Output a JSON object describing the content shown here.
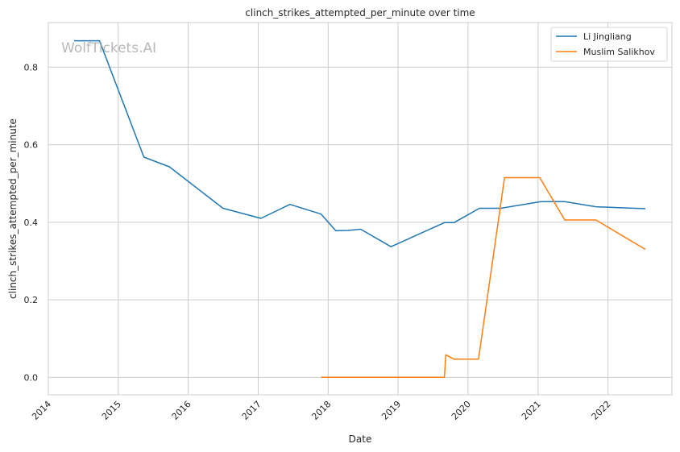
{
  "chart_data": {
    "type": "line",
    "title": "clinch_strikes_attempted_per_minute over time",
    "xlabel": "Date",
    "ylabel": "clinch_strikes_attempted_per_minute",
    "watermark": "WolfTickets.AI",
    "xlim": [
      "2014-01-01",
      "2022-12-01"
    ],
    "ylim": [
      -0.045,
      0.915
    ],
    "x_ticks": [
      "2014",
      "2015",
      "2016",
      "2017",
      "2018",
      "2019",
      "2020",
      "2021",
      "2022"
    ],
    "y_ticks": [
      "0.0",
      "0.2",
      "0.4",
      "0.6",
      "0.8"
    ],
    "grid": true,
    "legend_position": "top-right",
    "series": [
      {
        "name": "Li Jingliang",
        "color": "#1f77b4",
        "points": [
          [
            "2014-05-15",
            0.868
          ],
          [
            "2014-09-25",
            0.868
          ],
          [
            "2015-05-15",
            0.568
          ],
          [
            "2015-09-25",
            0.543
          ],
          [
            "2016-07-01",
            0.436
          ],
          [
            "2017-01-15",
            0.41
          ],
          [
            "2017-06-15",
            0.446
          ],
          [
            "2017-11-25",
            0.421
          ],
          [
            "2018-02-10",
            0.378
          ],
          [
            "2018-04-15",
            0.379
          ],
          [
            "2018-06-20",
            0.382
          ],
          [
            "2018-11-25",
            0.337
          ],
          [
            "2019-08-31",
            0.399
          ],
          [
            "2019-10-20",
            0.399
          ],
          [
            "2020-03-01",
            0.436
          ],
          [
            "2020-06-20",
            0.436
          ],
          [
            "2021-01-15",
            0.453
          ],
          [
            "2021-05-20",
            0.453
          ],
          [
            "2021-10-30",
            0.44
          ],
          [
            "2022-07-15",
            0.435
          ]
        ]
      },
      {
        "name": "Muslim Salikhov",
        "color": "#ff7f0e",
        "points": [
          [
            "2017-11-25",
            0.0
          ],
          [
            "2019-08-31",
            0.0
          ],
          [
            "2019-09-07",
            0.058
          ],
          [
            "2019-10-20",
            0.047
          ],
          [
            "2020-02-25",
            0.047
          ],
          [
            "2020-07-10",
            0.515
          ],
          [
            "2021-01-10",
            0.515
          ],
          [
            "2021-05-20",
            0.406
          ],
          [
            "2021-10-30",
            0.406
          ],
          [
            "2022-07-15",
            0.33
          ]
        ]
      }
    ]
  }
}
